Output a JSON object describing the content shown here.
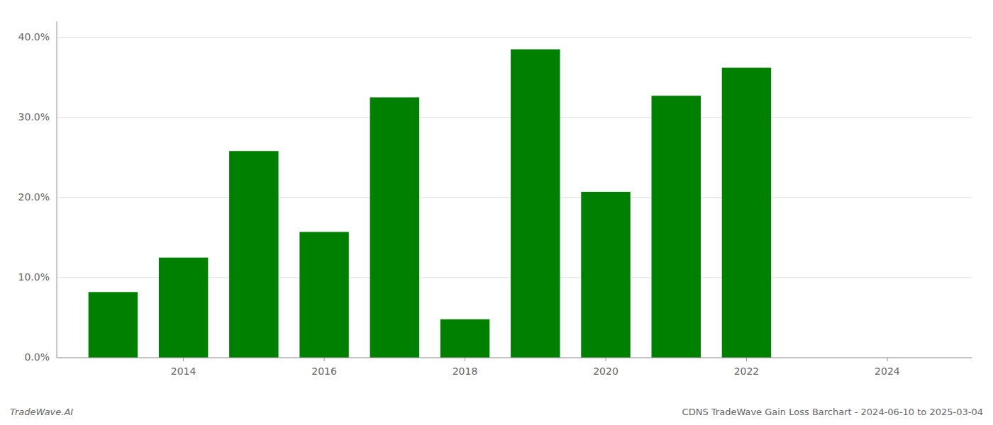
{
  "chart_data": {
    "type": "bar",
    "title": "CDNS TradeWave Gain Loss Barchart - 2024-06-10 to 2025-03-04",
    "annotations": [
      "TradeWave.AI"
    ],
    "x": [
      2013,
      2014,
      2015,
      2016,
      2017,
      2018,
      2019,
      2020,
      2021,
      2022
    ],
    "values": [
      0.082,
      0.125,
      0.258,
      0.157,
      0.325,
      0.048,
      0.385,
      0.207,
      0.327,
      0.362
    ],
    "color": "#008000",
    "xlim": [
      2012.2,
      2025.2
    ],
    "xticks": [
      2014,
      2016,
      2018,
      2020,
      2022,
      2024
    ],
    "ylim": [
      0,
      0.42
    ],
    "yticks": [
      {
        "value": 0.0,
        "label": "0.0%"
      },
      {
        "value": 0.1,
        "label": "10.0%"
      },
      {
        "value": 0.2,
        "label": "20.0%"
      },
      {
        "value": 0.3,
        "label": "30.0%"
      },
      {
        "value": 0.4,
        "label": "40.0%"
      }
    ],
    "grid": true
  }
}
